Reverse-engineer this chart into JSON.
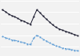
{
  "male": [
    10.4,
    10.1,
    9.7,
    9.4,
    9.2,
    8.9,
    8.6,
    8.4,
    8.1,
    7.9,
    9.2,
    10.4,
    9.9,
    9.3,
    8.8,
    8.3,
    7.8,
    7.4,
    7.1,
    6.9,
    6.7,
    6.5,
    6.3,
    6.1,
    5.9
  ],
  "female": [
    5.8,
    5.6,
    5.4,
    5.2,
    5.1,
    5.0,
    4.8,
    4.7,
    4.5,
    4.4,
    5.5,
    6.0,
    5.7,
    5.3,
    5.0,
    4.7,
    4.4,
    4.2,
    4.0,
    3.8,
    3.7,
    3.6,
    3.5,
    3.4,
    3.3
  ],
  "male_color": "#1a1a2e",
  "female_color": "#5b9bd5",
  "background_color": "#f2f2f2",
  "n_points": 25,
  "ylim_min": 2.5,
  "ylim_max": 12.0,
  "grid_interval": 2
}
